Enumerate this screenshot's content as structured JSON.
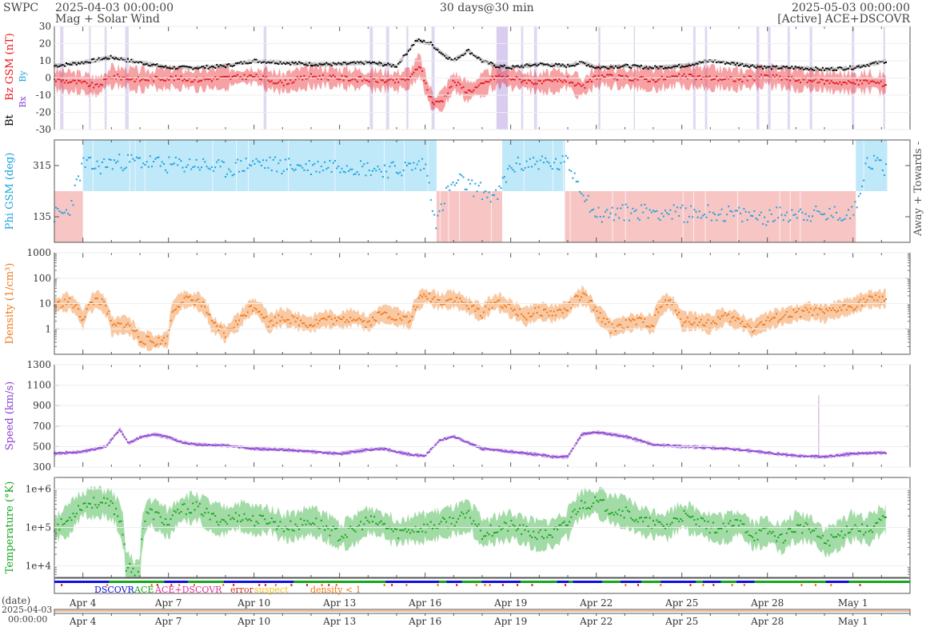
{
  "header": {
    "brand": "SWPC",
    "start_time": "2025-04-03 00:00:00",
    "subtitle": "Mag + Solar Wind",
    "span": "30 days@30 min",
    "end_time": "2025-05-03 00:00:00",
    "source": "[Active] ACE+DSCOVR"
  },
  "footer": {
    "date_label": "(date)",
    "start_date": "2025-04-03",
    "start_clock": "00:00:00"
  },
  "colors": {
    "bt": "#000000",
    "bz": "#e8141c",
    "phi": "#1aa3dc",
    "density": "#f07818",
    "speed": "#8a3fd0",
    "temp": "#16a51f",
    "bg_purple": "#d8cdee",
    "bg_blue": "#bfe8f9",
    "bg_red": "#f8c5c5",
    "dscovr": "#1010d8",
    "ace": "#16a51f",
    "both": "#e0309e",
    "error": "#d03020",
    "suspect": "#f0c018"
  },
  "chart_data": {
    "type": "line",
    "x_axis": {
      "start": "2025-04-03 00:00:00",
      "end": "2025-05-03 00:00:00",
      "tick_labels": [
        "Apr 4",
        "Apr 7",
        "Apr 10",
        "Apr 13",
        "Apr 16",
        "Apr 19",
        "Apr 22",
        "Apr 25",
        "Apr 28",
        "May 1"
      ],
      "tick_days": [
        1,
        4,
        7,
        10,
        13,
        16,
        19,
        22,
        25,
        28
      ]
    },
    "panels": [
      {
        "key": "mag",
        "ylabel_parts": [
          "Bt",
          "Bz GSM (nT)"
        ],
        "legend_glyphs": [
          "Bx",
          "By"
        ],
        "ylim": [
          -30,
          30
        ],
        "yticks": [
          -30,
          -20,
          -10,
          0,
          10,
          20,
          30
        ],
        "series": [
          {
            "name": "Bt",
            "x": [
              0,
              1,
              2,
              3,
              4,
              5,
              6,
              7,
              8,
              9,
              10,
              11,
              12,
              12.7,
              13.2,
              13.6,
              14,
              14.5,
              15,
              15.5,
              16,
              17,
              18,
              18.5,
              19,
              20,
              21,
              22,
              23,
              24,
              25,
              26,
              27,
              28,
              28.6,
              29.2
            ],
            "y": [
              7,
              9,
              12,
              9,
              6,
              6,
              7,
              10,
              9,
              8,
              8,
              9,
              7,
              22,
              20,
              14,
              10,
              16,
              10,
              7,
              6,
              8,
              7,
              9,
              6,
              7,
              6,
              7,
              10,
              8,
              6,
              6,
              5,
              6,
              8,
              10
            ]
          },
          {
            "name": "Bz",
            "x": [
              0,
              1,
              1.5,
              2,
              3,
              4,
              5,
              6,
              7,
              8,
              9,
              10,
              11,
              12,
              12.5,
              12.8,
              13.1,
              13.3,
              13.6,
              14,
              14.5,
              15,
              15.5,
              16,
              17,
              18,
              18.5,
              19,
              20,
              21,
              22,
              23,
              24,
              25,
              26,
              27,
              28,
              28.6,
              29.2
            ],
            "y": [
              -1,
              -3,
              -5,
              1,
              -1,
              0,
              -1,
              0,
              1,
              -3,
              1,
              0,
              -1,
              -2,
              0,
              8,
              -8,
              -15,
              -13,
              -2,
              -8,
              -4,
              1,
              0,
              -3,
              -1,
              -6,
              1,
              0,
              -1,
              1,
              0,
              -1,
              1,
              -1,
              -2,
              -3,
              -2,
              -4
            ]
          }
        ]
      },
      {
        "key": "phi",
        "ylabel": "Phi GSM (deg)",
        "right_labels": [
          "Away +",
          "Towards -"
        ],
        "ylim": [
          45,
          405
        ],
        "yticks": [
          135,
          315
        ],
        "sectors": [
          {
            "start": 0,
            "end": 1,
            "sign": "away"
          },
          {
            "start": 1,
            "end": 13.4,
            "sign": "towards"
          },
          {
            "start": 13.4,
            "end": 15.7,
            "sign": "away"
          },
          {
            "start": 15.7,
            "end": 17.9,
            "sign": "towards"
          },
          {
            "start": 17.9,
            "end": 28.1,
            "sign": "away"
          },
          {
            "start": 28.1,
            "end": 29.2,
            "sign": "towards"
          }
        ],
        "series": [
          {
            "name": "Phi",
            "x": [
              0,
              0.5,
              1,
              1.5,
              2,
              3,
              4,
              5,
              6,
              7,
              8,
              9,
              10,
              11,
              12,
              12.5,
              13,
              13.4,
              13.8,
              14.2,
              14.6,
              15,
              15.5,
              16,
              16.5,
              17,
              17.5,
              18,
              19,
              20,
              21,
              22,
              23,
              24,
              25,
              26,
              27,
              28,
              28.5,
              29,
              29.2
            ],
            "y": [
              140,
              150,
              320,
              310,
              325,
              330,
              315,
              320,
              300,
              325,
              315,
              310,
              320,
              305,
              300,
              310,
              320,
              110,
              230,
              260,
              240,
              225,
              200,
              310,
              320,
              330,
              315,
              325,
              140,
              150,
              155,
              145,
              150,
              140,
              135,
              150,
              140,
              145,
              330,
              320,
              300
            ]
          }
        ]
      },
      {
        "key": "density",
        "ylabel": "Density (1/cm³)",
        "ylim": [
          0.1,
          1000
        ],
        "log": true,
        "ytick_labels": [
          "1",
          "10",
          "100",
          "1000"
        ],
        "yticks": [
          1,
          10,
          100,
          1000
        ],
        "series": [
          {
            "name": "Density",
            "x": [
              0,
              0.5,
              1,
              1.5,
              2,
              2.5,
              3,
              3.5,
              4,
              4.5,
              5,
              5.5,
              6,
              6.5,
              7,
              7.5,
              8,
              8.5,
              9,
              9.5,
              10,
              10.5,
              11,
              11.5,
              12,
              12.5,
              13,
              13.5,
              14,
              14.5,
              15,
              15.5,
              16,
              16.5,
              17,
              17.5,
              18,
              18.5,
              19,
              19.5,
              20,
              20.5,
              21,
              21.5,
              22,
              22.5,
              23,
              23.5,
              24,
              24.5,
              25,
              25.5,
              26,
              26.5,
              27,
              27.5,
              28,
              28.5,
              29,
              29.2
            ],
            "y": [
              8,
              12,
              2,
              15,
              1.2,
              1.5,
              0.4,
              0.3,
              0.4,
              14,
              13,
              1.5,
              0.6,
              2,
              8,
              1.5,
              3,
              2,
              1.5,
              2.5,
              2,
              3,
              1.5,
              4,
              3,
              2,
              20,
              12,
              15,
              8,
              4,
              12,
              6,
              3,
              5,
              4,
              6,
              20,
              4,
              1,
              1.5,
              2,
              1.5,
              12,
              2,
              2,
              1.5,
              3,
              2,
              1,
              2,
              3,
              4,
              5,
              4,
              6,
              8,
              14,
              15,
              16
            ]
          }
        ]
      },
      {
        "key": "speed",
        "ylabel": "Speed (km/s)",
        "ylim": [
          300,
          1300
        ],
        "yticks": [
          300,
          500,
          700,
          900,
          1100,
          1300
        ],
        "series": [
          {
            "name": "Speed",
            "x": [
              0,
              1,
              1.8,
              2.3,
              2.6,
              3,
              3.5,
              4,
              4.5,
              5,
              6,
              7,
              8,
              9,
              10,
              11,
              11.5,
              12,
              12.5,
              13,
              13.5,
              14,
              14.5,
              15,
              16,
              17,
              17.5,
              18,
              18.5,
              19,
              19.5,
              20,
              21,
              22,
              23,
              24,
              25,
              26,
              27,
              28,
              29,
              29.2
            ],
            "y": [
              430,
              450,
              500,
              670,
              530,
              590,
              620,
              590,
              540,
              520,
              510,
              480,
              470,
              450,
              430,
              470,
              480,
              450,
              420,
              410,
              560,
              600,
              540,
              480,
              450,
              420,
              400,
              400,
              620,
              640,
              620,
              600,
              520,
              500,
              490,
              470,
              440,
              410,
              400,
              430,
              440,
              440
            ]
          }
        ]
      },
      {
        "key": "temp",
        "ylabel": "Temperature (°K)",
        "ylim": [
          5000,
          2000000
        ],
        "log": true,
        "ytick_labels": [
          "1e+4",
          "1e+5",
          "1e+6"
        ],
        "yticks": [
          10000,
          100000,
          1000000
        ],
        "series": [
          {
            "name": "Temperature",
            "x": [
              0,
              0.5,
              1,
              1.5,
              2,
              2.5,
              2.8,
              3,
              3.3,
              3.6,
              4,
              4.5,
              5,
              5.5,
              6,
              6.5,
              7,
              7.5,
              8,
              8.5,
              9,
              9.5,
              10,
              10.5,
              11,
              11.5,
              12,
              12.5,
              13,
              13.5,
              14,
              14.5,
              15,
              15.5,
              16,
              16.5,
              17,
              17.5,
              18,
              18.5,
              19,
              19.5,
              20,
              20.5,
              21,
              21.5,
              22,
              22.5,
              23,
              23.5,
              24,
              24.5,
              25,
              25.5,
              26,
              26.5,
              27,
              27.5,
              28,
              28.5,
              29,
              29.2
            ],
            "y": [
              90000,
              150000,
              400000,
              450000,
              380000,
              10000,
              6000,
              6000,
              250000,
              200000,
              120000,
              300000,
              330000,
              180000,
              150000,
              200000,
              150000,
              160000,
              100000,
              110000,
              150000,
              100000,
              60000,
              80000,
              150000,
              120000,
              70000,
              90000,
              100000,
              120000,
              150000,
              200000,
              70000,
              90000,
              110000,
              80000,
              60000,
              70000,
              120000,
              400000,
              450000,
              300000,
              250000,
              150000,
              120000,
              110000,
              200000,
              140000,
              100000,
              90000,
              130000,
              60000,
              80000,
              50000,
              100000,
              90000,
              40000,
              60000,
              110000,
              80000,
              150000,
              160000
            ]
          }
        ]
      }
    ],
    "source_bar": {
      "legend": [
        "DSCOVR",
        "ACE",
        "ACE+DSCOVR",
        "error",
        "suspect",
        "density < 1"
      ]
    }
  }
}
